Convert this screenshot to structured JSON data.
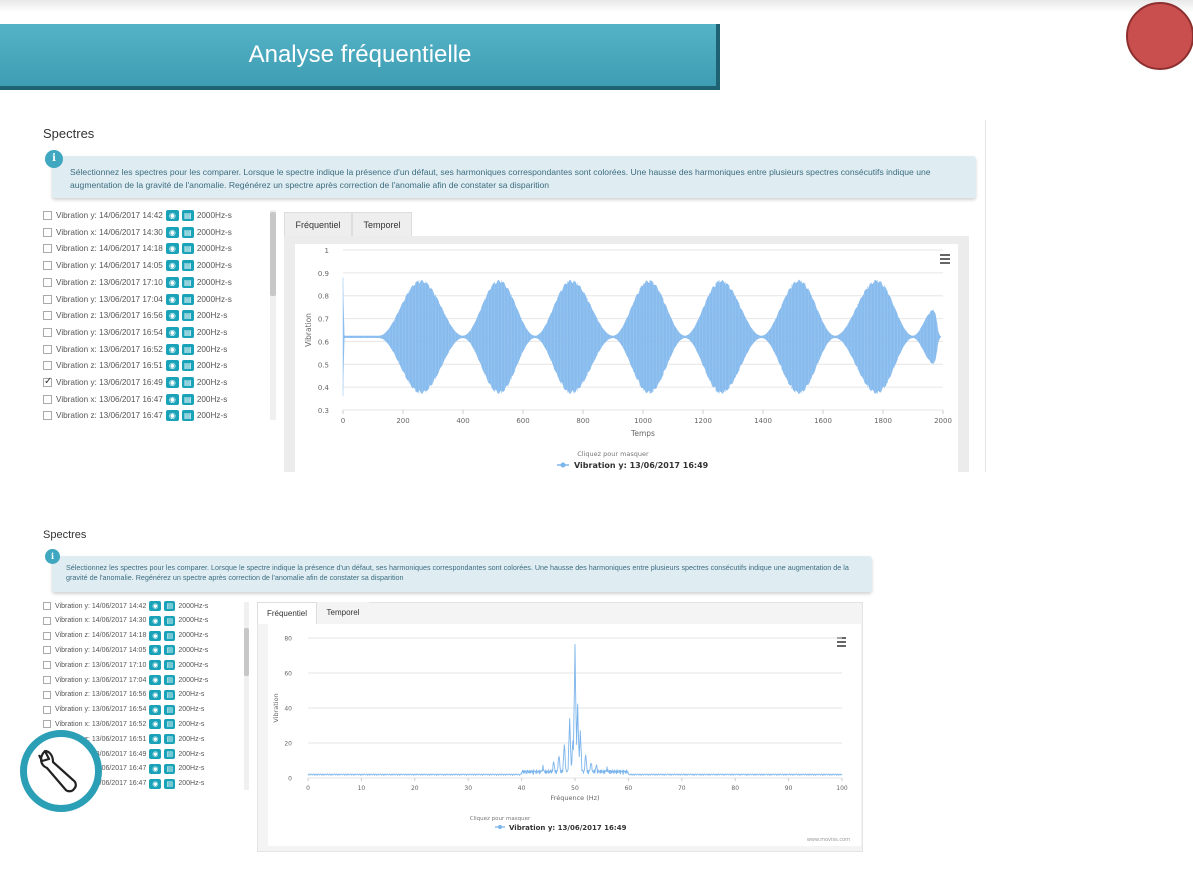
{
  "header": {
    "title": "Analyse fréquentielle"
  },
  "panel_top": {
    "title": "Spectres",
    "info_icon": "i",
    "info_text": "Sélectionnez les spectres pour les comparer. Lorsque le spectre indique la présence d'un défaut, ses harmoniques correspondantes sont colorées. Une hausse des harmoniques entre plusieurs spectres consécutifs indique une augmentation de la gravité de l'anomalie. Regénérez un spectre après correction de l'anomalie afin de constater sa disparition",
    "tabs": [
      {
        "label": "Fréquentiel",
        "active": false
      },
      {
        "label": "Temporel",
        "active": true
      }
    ]
  },
  "panel_bottom": {
    "title": "Spectres",
    "info_icon": "i",
    "info_text": "Sélectionnez les spectres pour les comparer. Lorsque le spectre indique la présence d'un défaut, ses harmoniques correspondantes sont colorées. Une hausse des harmoniques entre plusieurs spectres consécutifs indique une augmentation de la gravité de l'anomalie. Regénérez un spectre après correction de l'anomalie afin de constater sa disparition",
    "tabs": [
      {
        "label": "Fréquentiel",
        "active": true
      },
      {
        "label": "Temporel",
        "active": false
      }
    ]
  },
  "spectra": [
    {
      "label": "Vibration y: 14/06/2017 14:42",
      "rate": "2000Hz-s",
      "checked": false
    },
    {
      "label": "Vibration x: 14/06/2017 14:30",
      "rate": "2000Hz-s",
      "checked": false
    },
    {
      "label": "Vibration z: 14/06/2017 14:18",
      "rate": "2000Hz-s",
      "checked": false
    },
    {
      "label": "Vibration y: 14/06/2017 14:05",
      "rate": "2000Hz-s",
      "checked": false
    },
    {
      "label": "Vibration z: 13/06/2017 17:10",
      "rate": "2000Hz-s",
      "checked": false
    },
    {
      "label": "Vibration y: 13/06/2017 17:04",
      "rate": "2000Hz-s",
      "checked": false
    },
    {
      "label": "Vibration z: 13/06/2017 16:56",
      "rate": "200Hz-s",
      "checked": false
    },
    {
      "label": "Vibration y: 13/06/2017 16:54",
      "rate": "200Hz-s",
      "checked": false
    },
    {
      "label": "Vibration x: 13/06/2017 16:52",
      "rate": "200Hz-s",
      "checked": false
    },
    {
      "label": "Vibration z: 13/06/2017 16:51",
      "rate": "200Hz-s",
      "checked": false
    },
    {
      "label": "Vibration y: 13/06/2017 16:49",
      "rate": "200Hz-s",
      "checked": true
    },
    {
      "label": "Vibration x: 13/06/2017 16:47",
      "rate": "200Hz-s",
      "checked": false
    },
    {
      "label": "Vibration z: 13/06/2017 16:47",
      "rate": "200Hz-s",
      "checked": false
    }
  ],
  "icons": {
    "view": "chart-view-icon",
    "doc": "document-icon",
    "menu": "hamburger-menu-icon",
    "tool": "wrench-icon"
  },
  "colors": {
    "accent": "#1aa3b8",
    "banner": "#4aa9bf",
    "series": "#7cb5ec",
    "alert": "#c94f4f"
  },
  "chart_data": [
    {
      "type": "area",
      "ylabel": "Vibration",
      "xlabel": "Temps",
      "xlim": [
        0,
        2000
      ],
      "ylim": [
        0.3,
        1
      ],
      "xticks": [
        "0",
        "200",
        "400",
        "600",
        "800",
        "1000",
        "1200",
        "1400",
        "1600",
        "1800",
        "2000"
      ],
      "yticks": [
        "0.3",
        "0.4",
        "0.5",
        "0.6",
        "0.7",
        "0.8",
        "0.9",
        "1"
      ],
      "legend_hint": "Cliquez pour masquer",
      "series": [
        {
          "name": "Vibration y: 13/06/2017 16:49"
        }
      ],
      "envelope": {
        "center": 0.62,
        "max_halfwidth": 0.26,
        "nodes_x": [
          3,
          120,
          400,
          640,
          900,
          1140,
          1395,
          1640,
          1900,
          1990
        ],
        "peaks_x": [
          0,
          260,
          520,
          760,
          1020,
          1260,
          1520,
          1780,
          1970
        ],
        "peak_halfwidth": [
          0.26,
          0.25,
          0.25,
          0.25,
          0.25,
          0.25,
          0.25,
          0.25,
          0.12
        ]
      }
    },
    {
      "type": "line",
      "ylabel": "Vibration",
      "xlabel": "Fréquence (Hz)",
      "xlim": [
        0,
        100
      ],
      "ylim": [
        0,
        80
      ],
      "xticks": [
        "0",
        "10",
        "20",
        "30",
        "40",
        "50",
        "60",
        "70",
        "80",
        "90",
        "100"
      ],
      "yticks": [
        "0",
        "20",
        "40",
        "60",
        "80"
      ],
      "legend_hint": "Cliquez pour masquer",
      "credit": "www.moviss.com",
      "series": [
        {
          "name": "Vibration y: 13/06/2017 16:49"
        }
      ],
      "peaks": [
        {
          "x": 44,
          "y": 5
        },
        {
          "x": 46,
          "y": 8
        },
        {
          "x": 47,
          "y": 12
        },
        {
          "x": 48,
          "y": 18
        },
        {
          "x": 49,
          "y": 32
        },
        {
          "x": 49.6,
          "y": 20
        },
        {
          "x": 50,
          "y": 74
        },
        {
          "x": 50.5,
          "y": 40
        },
        {
          "x": 51,
          "y": 25
        },
        {
          "x": 52,
          "y": 12
        },
        {
          "x": 53,
          "y": 8
        },
        {
          "x": 54,
          "y": 6
        },
        {
          "x": 56,
          "y": 4
        }
      ],
      "baseline": 1.5
    }
  ]
}
